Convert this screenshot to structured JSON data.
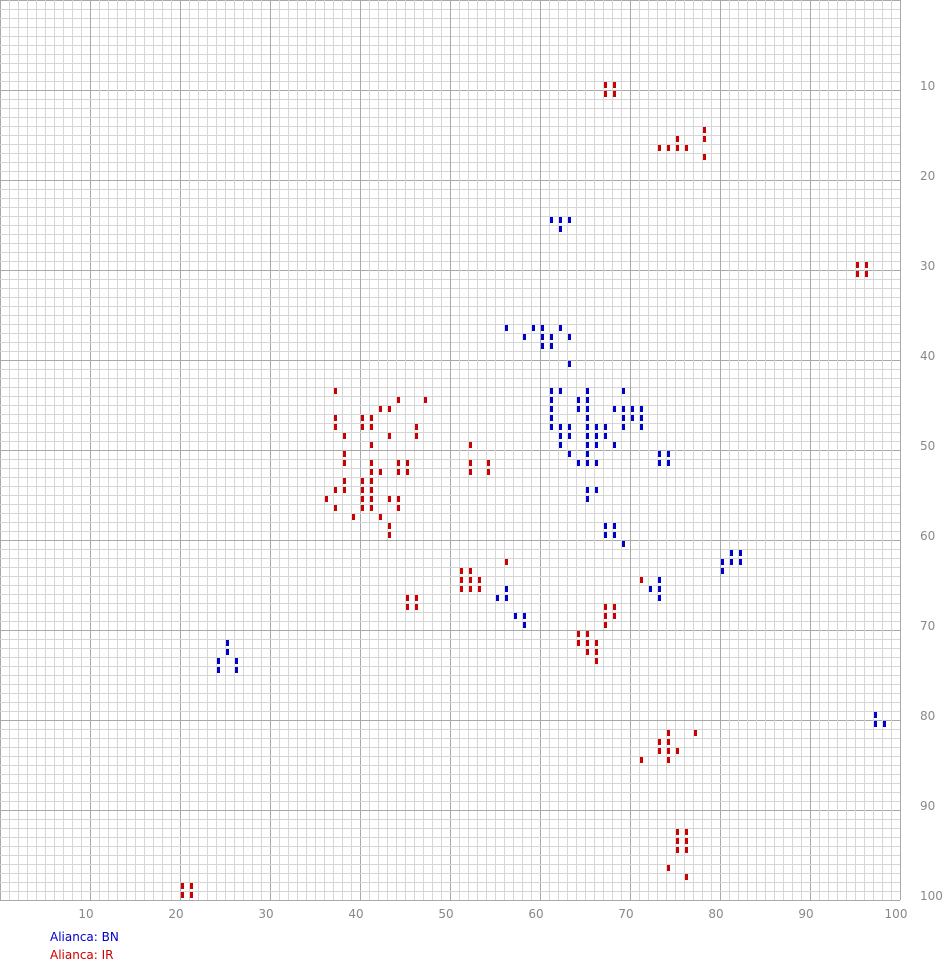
{
  "chart_data": {
    "type": "heatmap",
    "xlim": [
      1,
      100
    ],
    "ylim": [
      1,
      100
    ],
    "x_ticks": [
      10,
      20,
      30,
      40,
      50,
      60,
      70,
      80,
      90,
      100
    ],
    "y_ticks": [
      10,
      20,
      30,
      40,
      50,
      60,
      70,
      80,
      90,
      100
    ],
    "grid": true,
    "legend": [
      {
        "label": "Alianca: BN",
        "color": "#0000cc"
      },
      {
        "label": "Alianca: IR",
        "color": "#cc0000"
      }
    ],
    "series": [
      {
        "color": "#0000cc",
        "points": [
          [
            62,
            25
          ],
          [
            63,
            25
          ],
          [
            64,
            25
          ],
          [
            63,
            26
          ],
          [
            57,
            37
          ],
          [
            60,
            37
          ],
          [
            61,
            37
          ],
          [
            62,
            38
          ],
          [
            63,
            37
          ],
          [
            59,
            38
          ],
          [
            61,
            38
          ],
          [
            64,
            38
          ],
          [
            61,
            39
          ],
          [
            62,
            39
          ],
          [
            64,
            41
          ],
          [
            62,
            44
          ],
          [
            63,
            44
          ],
          [
            66,
            44
          ],
          [
            70,
            44
          ],
          [
            62,
            45
          ],
          [
            65,
            45
          ],
          [
            66,
            45
          ],
          [
            62,
            46
          ],
          [
            65,
            46
          ],
          [
            66,
            46
          ],
          [
            69,
            46
          ],
          [
            70,
            46
          ],
          [
            71,
            46
          ],
          [
            72,
            46
          ],
          [
            62,
            47
          ],
          [
            66,
            47
          ],
          [
            70,
            47
          ],
          [
            71,
            47
          ],
          [
            72,
            47
          ],
          [
            62,
            48
          ],
          [
            66,
            48
          ],
          [
            70,
            48
          ],
          [
            72,
            48
          ],
          [
            63,
            48
          ],
          [
            64,
            48
          ],
          [
            66,
            49
          ],
          [
            67,
            48
          ],
          [
            68,
            48
          ],
          [
            63,
            49
          ],
          [
            64,
            49
          ],
          [
            66,
            49
          ],
          [
            67,
            49
          ],
          [
            68,
            49
          ],
          [
            63,
            50
          ],
          [
            66,
            50
          ],
          [
            67,
            50
          ],
          [
            69,
            50
          ],
          [
            64,
            51
          ],
          [
            66,
            51
          ],
          [
            74,
            51
          ],
          [
            75,
            51
          ],
          [
            65,
            52
          ],
          [
            66,
            52
          ],
          [
            67,
            52
          ],
          [
            74,
            52
          ],
          [
            75,
            52
          ],
          [
            66,
            55
          ],
          [
            67,
            55
          ],
          [
            66,
            56
          ],
          [
            68,
            59
          ],
          [
            69,
            59
          ],
          [
            68,
            60
          ],
          [
            69,
            60
          ],
          [
            70,
            61
          ],
          [
            82,
            62
          ],
          [
            83,
            62
          ],
          [
            82,
            63
          ],
          [
            83,
            63
          ],
          [
            81,
            63
          ],
          [
            81,
            64
          ],
          [
            74,
            65
          ],
          [
            73,
            66
          ],
          [
            74,
            66
          ],
          [
            74,
            67
          ],
          [
            57,
            66
          ],
          [
            56,
            67
          ],
          [
            57,
            67
          ],
          [
            58,
            69
          ],
          [
            59,
            69
          ],
          [
            59,
            70
          ],
          [
            26,
            72
          ],
          [
            26,
            73
          ],
          [
            25,
            74
          ],
          [
            27,
            74
          ],
          [
            25,
            75
          ],
          [
            27,
            75
          ],
          [
            98,
            80
          ],
          [
            98,
            81
          ],
          [
            99,
            81
          ]
        ]
      },
      {
        "color": "#cc0000",
        "points": [
          [
            68,
            10
          ],
          [
            69,
            10
          ],
          [
            68,
            11
          ],
          [
            69,
            11
          ],
          [
            79,
            15
          ],
          [
            76,
            16
          ],
          [
            79,
            16
          ],
          [
            74,
            17
          ],
          [
            75,
            17
          ],
          [
            76,
            17
          ],
          [
            77,
            17
          ],
          [
            79,
            18
          ],
          [
            96,
            30
          ],
          [
            97,
            30
          ],
          [
            96,
            31
          ],
          [
            97,
            31
          ],
          [
            38,
            44
          ],
          [
            45,
            45
          ],
          [
            48,
            45
          ],
          [
            43,
            46
          ],
          [
            44,
            46
          ],
          [
            38,
            47
          ],
          [
            41,
            47
          ],
          [
            42,
            47
          ],
          [
            38,
            48
          ],
          [
            41,
            48
          ],
          [
            42,
            48
          ],
          [
            47,
            48
          ],
          [
            39,
            49
          ],
          [
            47,
            49
          ],
          [
            44,
            49
          ],
          [
            42,
            50
          ],
          [
            53,
            50
          ],
          [
            39,
            51
          ],
          [
            39,
            52
          ],
          [
            42,
            52
          ],
          [
            53,
            52
          ],
          [
            55,
            52
          ],
          [
            45,
            52
          ],
          [
            46,
            52
          ],
          [
            53,
            53
          ],
          [
            55,
            53
          ],
          [
            45,
            53
          ],
          [
            42,
            53
          ],
          [
            43,
            53
          ],
          [
            46,
            53
          ],
          [
            39,
            54
          ],
          [
            41,
            54
          ],
          [
            42,
            54
          ],
          [
            39,
            55
          ],
          [
            41,
            55
          ],
          [
            42,
            55
          ],
          [
            38,
            55
          ],
          [
            37,
            56
          ],
          [
            41,
            56
          ],
          [
            42,
            56
          ],
          [
            44,
            56
          ],
          [
            45,
            56
          ],
          [
            38,
            57
          ],
          [
            41,
            57
          ],
          [
            42,
            57
          ],
          [
            45,
            57
          ],
          [
            40,
            58
          ],
          [
            43,
            58
          ],
          [
            44,
            59
          ],
          [
            44,
            60
          ],
          [
            57,
            63
          ],
          [
            52,
            64
          ],
          [
            53,
            64
          ],
          [
            52,
            65
          ],
          [
            53,
            65
          ],
          [
            54,
            65
          ],
          [
            52,
            66
          ],
          [
            53,
            66
          ],
          [
            54,
            66
          ],
          [
            72,
            65
          ],
          [
            46,
            67
          ],
          [
            47,
            67
          ],
          [
            46,
            68
          ],
          [
            47,
            68
          ],
          [
            68,
            68
          ],
          [
            69,
            68
          ],
          [
            68,
            69
          ],
          [
            69,
            69
          ],
          [
            68,
            70
          ],
          [
            65,
            71
          ],
          [
            66,
            71
          ],
          [
            65,
            72
          ],
          [
            66,
            72
          ],
          [
            67,
            72
          ],
          [
            66,
            73
          ],
          [
            67,
            73
          ],
          [
            67,
            74
          ],
          [
            78,
            82
          ],
          [
            75,
            82
          ],
          [
            74,
            83
          ],
          [
            75,
            83
          ],
          [
            74,
            84
          ],
          [
            75,
            84
          ],
          [
            76,
            84
          ],
          [
            75,
            85
          ],
          [
            72,
            85
          ],
          [
            76,
            93
          ],
          [
            77,
            93
          ],
          [
            76,
            94
          ],
          [
            77,
            94
          ],
          [
            76,
            95
          ],
          [
            77,
            95
          ],
          [
            75,
            97
          ],
          [
            77,
            98
          ],
          [
            21,
            99
          ],
          [
            22,
            99
          ],
          [
            21,
            100
          ],
          [
            22,
            100
          ]
        ]
      }
    ]
  }
}
